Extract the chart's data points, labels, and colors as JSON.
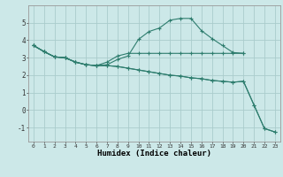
{
  "xlabel": "Humidex (Indice chaleur)",
  "xlim": [
    -0.5,
    23.5
  ],
  "ylim": [
    -1.8,
    6.0
  ],
  "xticks": [
    0,
    1,
    2,
    3,
    4,
    5,
    6,
    7,
    8,
    9,
    10,
    11,
    12,
    13,
    14,
    15,
    16,
    17,
    18,
    19,
    20,
    21,
    22,
    23
  ],
  "yticks": [
    -1,
    0,
    1,
    2,
    3,
    4,
    5
  ],
  "bg_color": "#cce8e8",
  "grid_color": "#aacccc",
  "line_color": "#2e7d6e",
  "series": [
    {
      "x": [
        0,
        1,
        2,
        3,
        4,
        5,
        6,
        7,
        8,
        9,
        10,
        11,
        12,
        13,
        14,
        15,
        16,
        17,
        18,
        19,
        20
      ],
      "y": [
        3.7,
        3.35,
        3.05,
        3.0,
        2.75,
        2.6,
        2.55,
        2.75,
        3.1,
        3.25,
        3.25,
        3.25,
        3.25,
        3.25,
        3.25,
        3.25,
        3.25,
        3.25,
        3.25,
        3.25,
        3.25
      ]
    },
    {
      "x": [
        0,
        1,
        2,
        3,
        4,
        5,
        6,
        7,
        8,
        9,
        10,
        11,
        12,
        13,
        14,
        15,
        16,
        17,
        18,
        19,
        20
      ],
      "y": [
        3.7,
        3.35,
        3.05,
        3.0,
        2.75,
        2.6,
        2.55,
        2.6,
        2.9,
        3.1,
        4.05,
        4.5,
        4.7,
        5.15,
        5.25,
        5.25,
        4.55,
        4.1,
        3.7,
        3.3,
        3.25
      ]
    },
    {
      "x": [
        0,
        1,
        2,
        3,
        4,
        5,
        6,
        7,
        8,
        9,
        10,
        11,
        12,
        13,
        14,
        15,
        16,
        17,
        18,
        19,
        20,
        21,
        22,
        23
      ],
      "y": [
        3.7,
        3.35,
        3.05,
        3.0,
        2.75,
        2.6,
        2.55,
        2.55,
        2.5,
        2.4,
        2.3,
        2.2,
        2.1,
        2.0,
        1.95,
        1.85,
        1.8,
        1.7,
        1.65,
        1.6,
        1.65,
        0.3,
        -1.05,
        -1.25
      ]
    },
    {
      "x": [
        0,
        1,
        2,
        3,
        4,
        5,
        6,
        7,
        8,
        9,
        10,
        11,
        12,
        13,
        14,
        15,
        16,
        17,
        18,
        19,
        20,
        21,
        22,
        23
      ],
      "y": [
        3.7,
        3.35,
        3.05,
        3.0,
        2.75,
        2.6,
        2.55,
        2.55,
        2.5,
        2.4,
        2.3,
        2.2,
        2.1,
        2.0,
        1.95,
        1.85,
        1.8,
        1.7,
        1.65,
        1.6,
        1.65,
        0.3,
        -1.05,
        -1.25
      ]
    }
  ]
}
